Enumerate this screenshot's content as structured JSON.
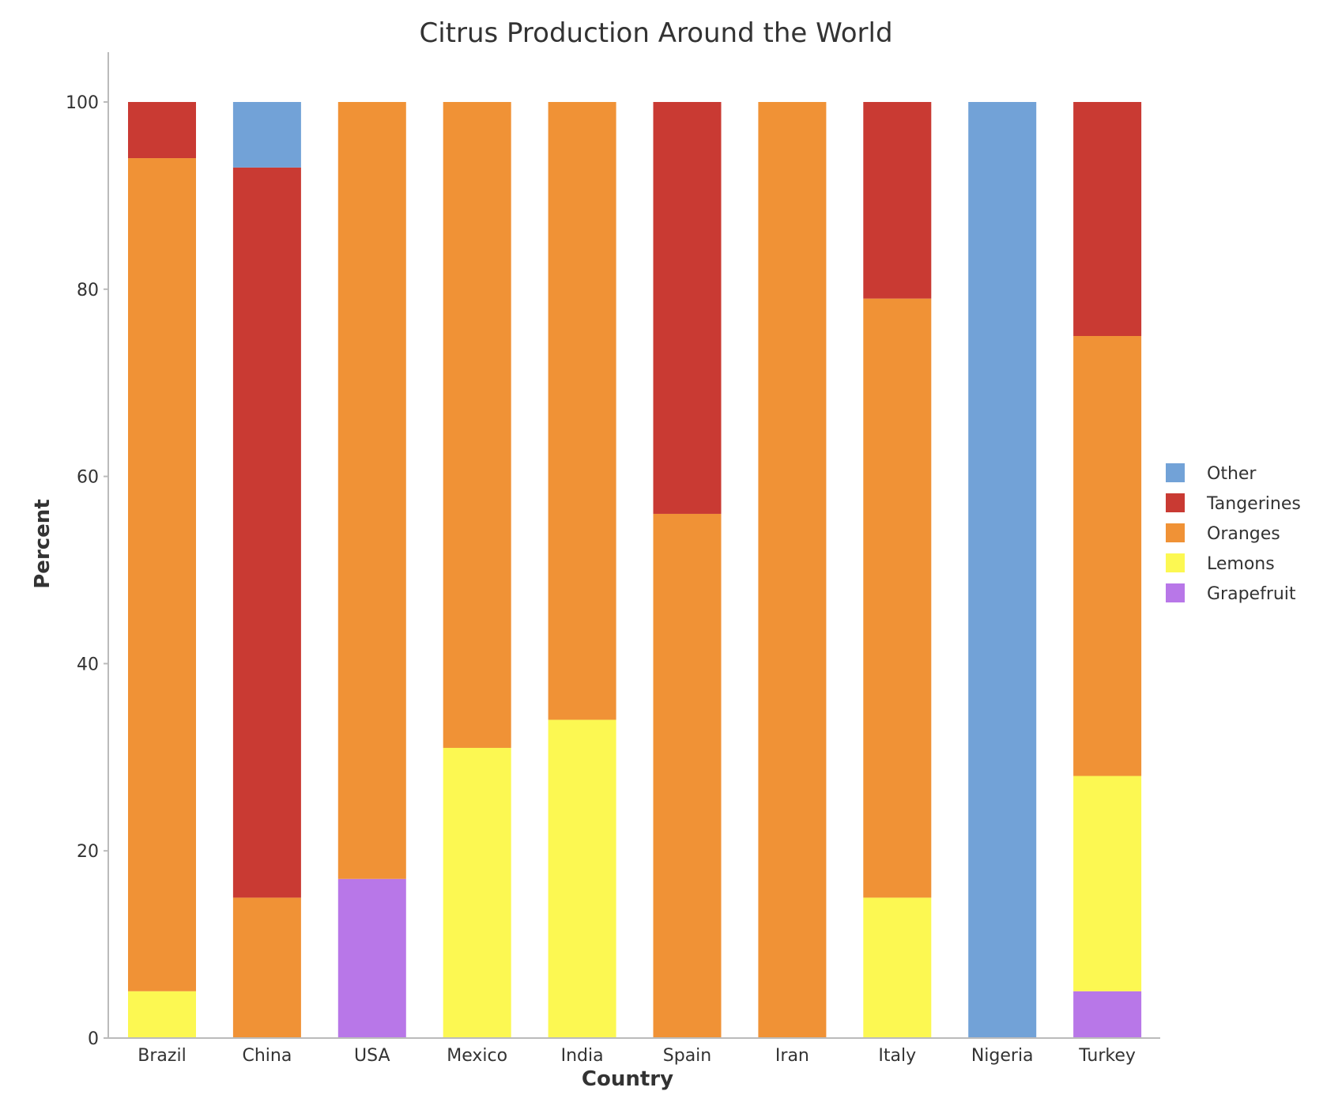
{
  "chart_data": {
    "type": "bar",
    "stacked": true,
    "title": "Citrus Production Around the World",
    "xlabel": "Country",
    "ylabel": "Percent",
    "ylim": [
      0,
      105
    ],
    "yticks": [
      0,
      20,
      40,
      60,
      80,
      100
    ],
    "grid": false,
    "legend_position": "right",
    "categories": [
      "Brazil",
      "China",
      "USA",
      "Mexico",
      "India",
      "Spain",
      "Iran",
      "Italy",
      "Nigeria",
      "Turkey"
    ],
    "series": [
      {
        "name": "Grapefruit",
        "color": "#b877e8",
        "values": [
          0,
          0,
          17,
          0,
          0,
          0,
          0,
          0,
          0,
          5
        ]
      },
      {
        "name": "Lemons",
        "color": "#fcf852",
        "values": [
          5,
          0,
          0,
          31,
          34,
          0,
          0,
          15,
          0,
          23
        ]
      },
      {
        "name": "Oranges",
        "color": "#f09236",
        "values": [
          89,
          15,
          83,
          69,
          66,
          56,
          100,
          64,
          0,
          47
        ]
      },
      {
        "name": "Tangerines",
        "color": "#c93a33",
        "values": [
          6,
          78,
          0,
          0,
          0,
          44,
          0,
          21,
          0,
          25
        ]
      },
      {
        "name": "Other",
        "color": "#72a2d7",
        "values": [
          0,
          7,
          0,
          0,
          0,
          0,
          0,
          0,
          100,
          0
        ]
      }
    ],
    "legend_order": [
      "Other",
      "Tangerines",
      "Oranges",
      "Lemons",
      "Grapefruit"
    ]
  }
}
